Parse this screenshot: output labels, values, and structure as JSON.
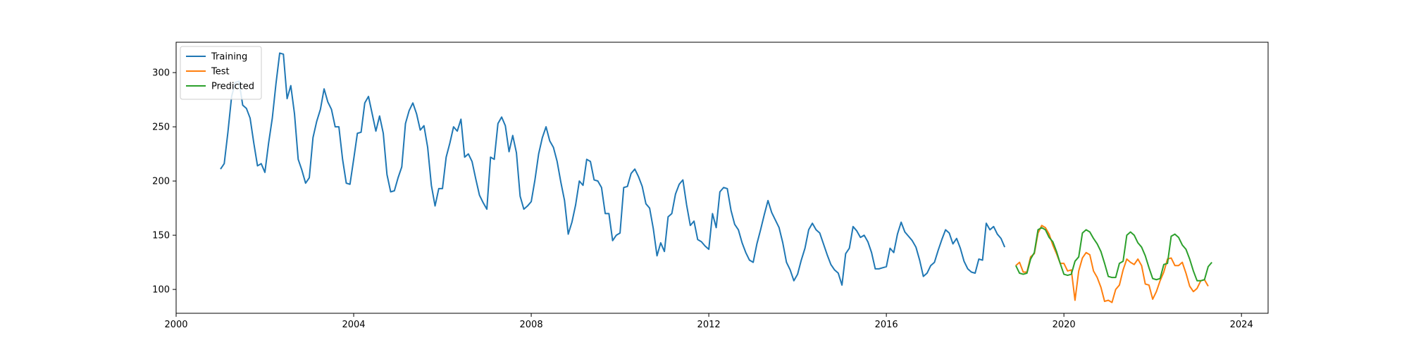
{
  "chart_data": {
    "type": "line",
    "title": "",
    "xlabel": "",
    "ylabel": "",
    "xlim": [
      2000.0,
      2024.6
    ],
    "ylim": [
      78,
      328
    ],
    "grid": false,
    "legend_position": "top-left",
    "x_ticks": [
      2000,
      2004,
      2008,
      2012,
      2016,
      2020,
      2024
    ],
    "y_ticks": [
      100,
      150,
      200,
      250,
      300
    ],
    "series": [
      {
        "name": "Training",
        "color": "#1f77b4",
        "x_start": "2001-01",
        "step_months": 1,
        "values": [
          211,
          216,
          245,
          278,
          291,
          292,
          270,
          267,
          258,
          235,
          214,
          216,
          208,
          235,
          258,
          290,
          318,
          317,
          276,
          288,
          262,
          220,
          210,
          198,
          203,
          240,
          255,
          266,
          285,
          273,
          266,
          250,
          250,
          220,
          198,
          197,
          220,
          244,
          245,
          272,
          278,
          262,
          246,
          260,
          244,
          206,
          190,
          191,
          203,
          213,
          253,
          265,
          272,
          262,
          247,
          251,
          231,
          196,
          177,
          193,
          193,
          222,
          235,
          250,
          246,
          257,
          222,
          225,
          218,
          202,
          187,
          180,
          174,
          222,
          220,
          253,
          259,
          251,
          227,
          242,
          226,
          186,
          174,
          177,
          181,
          201,
          225,
          240,
          250,
          237,
          231,
          218,
          199,
          182,
          151,
          162,
          178,
          200,
          196,
          220,
          218,
          201,
          200,
          194,
          170,
          170,
          145,
          150,
          152,
          194,
          195,
          207,
          211,
          204,
          195,
          179,
          175,
          156,
          131,
          143,
          135,
          167,
          170,
          188,
          197,
          201,
          178,
          159,
          163,
          146,
          144,
          140,
          137,
          170,
          157,
          190,
          194,
          193,
          173,
          160,
          155,
          143,
          134,
          127,
          125,
          142,
          155,
          169,
          182,
          171,
          164,
          157,
          143,
          125,
          118,
          108,
          114,
          127,
          138,
          155,
          161,
          155,
          152,
          142,
          132,
          123,
          118,
          115,
          104,
          133,
          138,
          158,
          154,
          148,
          150,
          144,
          134,
          119,
          119,
          120,
          121,
          138,
          134,
          151,
          162,
          153,
          149,
          145,
          139,
          127,
          112,
          115,
          122,
          125,
          136,
          146,
          155,
          152,
          142,
          147,
          138,
          126,
          119,
          116,
          115,
          128,
          127,
          161,
          155,
          158,
          151,
          147,
          139
        ]
      },
      {
        "name": "Test",
        "color": "#ff7f0e",
        "x_start": "2018-12",
        "step_months": 1,
        "values": [
          122,
          125,
          116,
          116,
          130,
          133,
          152,
          159,
          157,
          151,
          141,
          133,
          124,
          124,
          117,
          118,
          90,
          117,
          129,
          134,
          132,
          117,
          111,
          102,
          89,
          90,
          88,
          100,
          104,
          118,
          128,
          125,
          123,
          128,
          122,
          105,
          104,
          91,
          98,
          108,
          116,
          128,
          129,
          122,
          122,
          125,
          115,
          103,
          98,
          101,
          108,
          109,
          103
        ]
      },
      {
        "name": "Predicted",
        "color": "#2ca02c",
        "x_start": "2018-12",
        "step_months": 1,
        "values": [
          122,
          115,
          114,
          115,
          128,
          134,
          155,
          157,
          155,
          148,
          144,
          135,
          124,
          114,
          113,
          114,
          126,
          130,
          152,
          155,
          153,
          147,
          142,
          135,
          124,
          112,
          111,
          111,
          124,
          126,
          150,
          153,
          150,
          143,
          139,
          131,
          120,
          110,
          109,
          110,
          123,
          124,
          149,
          151,
          148,
          141,
          137,
          128,
          117,
          108,
          108,
          109,
          121,
          125
        ]
      }
    ]
  }
}
